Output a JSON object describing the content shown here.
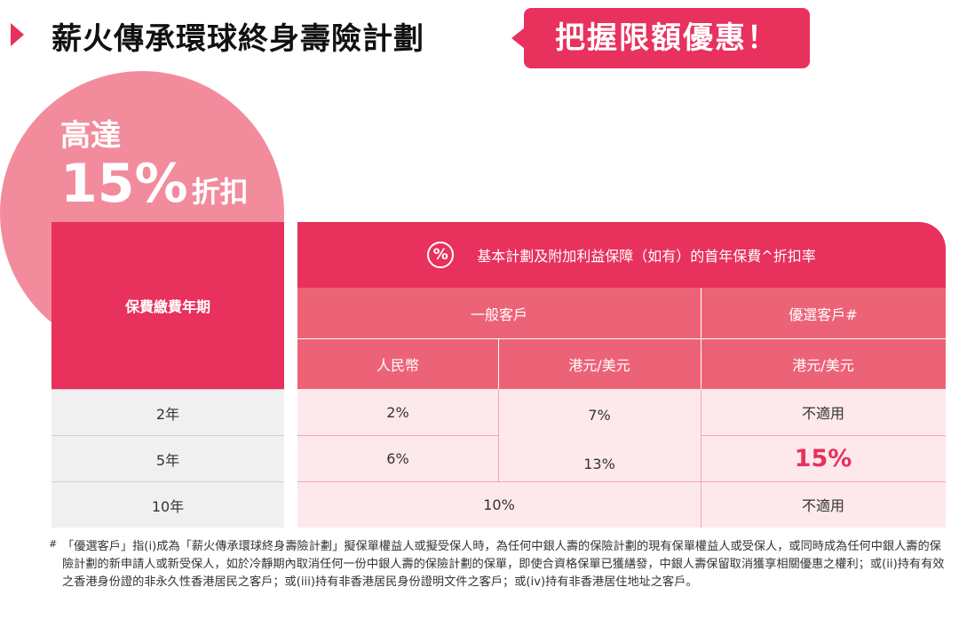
{
  "header": {
    "title": "薪火傳承環球終身壽險計劃",
    "promo": "把握限額優惠！"
  },
  "badge": {
    "upto": "高達",
    "percent": "15%",
    "discount": "折扣"
  },
  "table": {
    "left_header": "保費繳費年期",
    "main_header": "基本計劃及附加利益保障（如有）的首年保費^折扣率",
    "percent_icon": "%",
    "group_general": "一般客戶",
    "group_preferred": "優選客戶#",
    "col_rmb": "人民幣",
    "col_hkd_usd": "港元/美元",
    "col_preferred_hkd_usd": "港元/美元",
    "rows": [
      {
        "term": "2年",
        "rmb": "2%",
        "hkd": "7%",
        "preferred": "不適用"
      },
      {
        "term": "5年",
        "rmb": "6%",
        "hkd": "13%",
        "preferred": "15%"
      },
      {
        "term": "10年",
        "general_merged": "10%",
        "preferred": "不適用"
      }
    ]
  },
  "footnote": {
    "mark": "#",
    "text": "「優選客戶」指(i)成為「薪火傳承環球終身壽險計劃」擬保單權益人或擬受保人時，為任何中銀人壽的保險計劃的現有保單權益人或受保人，或同時成為任何中銀人壽的保險計劃的新申請人或新受保人，如於冷靜期內取消任何一份中銀人壽的保險計劃的保單，即使合資格保單已獲繕發，中銀人壽保留取消獲享相關優惠之權利；或(ii)持有有效之香港身份證的非永久性香港居民之客戶；或(iii)持有非香港居民身份證明文件之客戶；或(iv)持有非香港居住地址之客戶。"
  },
  "colors": {
    "accent": "#e8315d",
    "sub_header": "#ec6378",
    "cell_bg": "#fde9ec",
    "circle": "#f28c9d"
  }
}
